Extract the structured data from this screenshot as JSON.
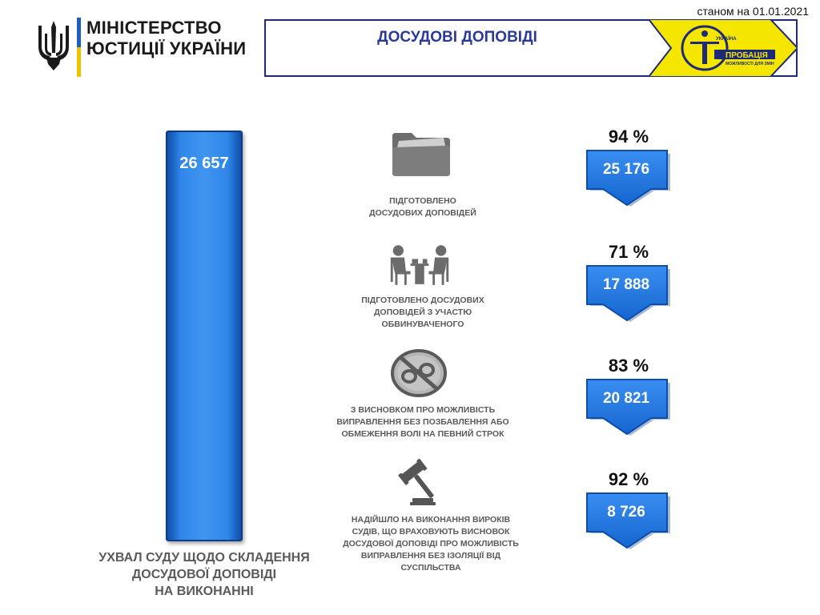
{
  "header": {
    "ministry_line1": "МІНІСТЕРСТВО",
    "ministry_line2": "ЮСТИЦІЇ УКРАЇНИ",
    "date": "станом на 01.01.2021",
    "title": "ДОСУДОВІ ДОПОВІДІ",
    "logo": {
      "text_top": "УКРАЇНА",
      "text_main": "ПРОБАЦІЯ",
      "text_sub": "МОЖЛИВОСТІ ДЛЯ ЗМІН",
      "color": "#f5e600"
    }
  },
  "main": {
    "total_value": "26 657",
    "total_caption_line1": "УХВАЛ СУДУ ЩОДО СКЛАДЕННЯ",
    "total_caption_line2": "ДОСУДОВОЇ ДОПОВІДІ",
    "total_caption_line3": "НА ВИКОНАННІ",
    "bar_color": "#2f86e8"
  },
  "items": [
    {
      "icon": "folder-icon",
      "label_line1": "ПІДГОТОВЛЕНО",
      "label_line2": "ДОСУДОВИХ ДОПОВІДЕЙ",
      "label_line3": "",
      "label_line4": "",
      "label_line5": "",
      "percent": "94 %",
      "value": "25 176"
    },
    {
      "icon": "meeting-icon",
      "label_line1": "ПІДГОТОВЛЕНО ДОСУДОВИХ",
      "label_line2": "ДОПОВІДЕЙ З УЧАСТЮ",
      "label_line3": "ОБВИНУВАЧЕНОГО",
      "label_line4": "",
      "label_line5": "",
      "percent": "71 %",
      "value": "17 888"
    },
    {
      "icon": "no-handcuffs-icon",
      "label_line1": "З ВИСНОВКОМ  ПРО МОЖЛИВІСТЬ",
      "label_line2": "ВИПРАВЛЕННЯ  БЕЗ ПОЗБАВЛЕННЯ АБО",
      "label_line3": "ОБМЕЖЕННЯ  ВОЛІ НА ПЕВНИЙ СТРОК",
      "label_line4": "",
      "label_line5": "",
      "percent": "83 %",
      "value": "20 821"
    },
    {
      "icon": "gavel-icon",
      "label_line1": "НАДІЙШЛО  НА ВИКОНАННЯ  ВИРОКІВ",
      "label_line2": "СУДІВ, ЩО ВРАХОВУЮТЬ  ВИСНОВОК",
      "label_line3": "ДОСУДОВОЇ ДОПОВІДІ  ПРО МОЖЛИВІСТЬ",
      "label_line4": "ВИПРАВЛЕННЯ  БЕЗ ІЗОЛЯЦІЇ ВІД",
      "label_line5": "СУСПІЛЬСТВА",
      "percent": "92 %",
      "value": "8 726"
    }
  ],
  "colors": {
    "accent_blue": "#1e6fd9",
    "frame_navy": "#1e2a78",
    "label_gray": "#5a5a5a"
  }
}
